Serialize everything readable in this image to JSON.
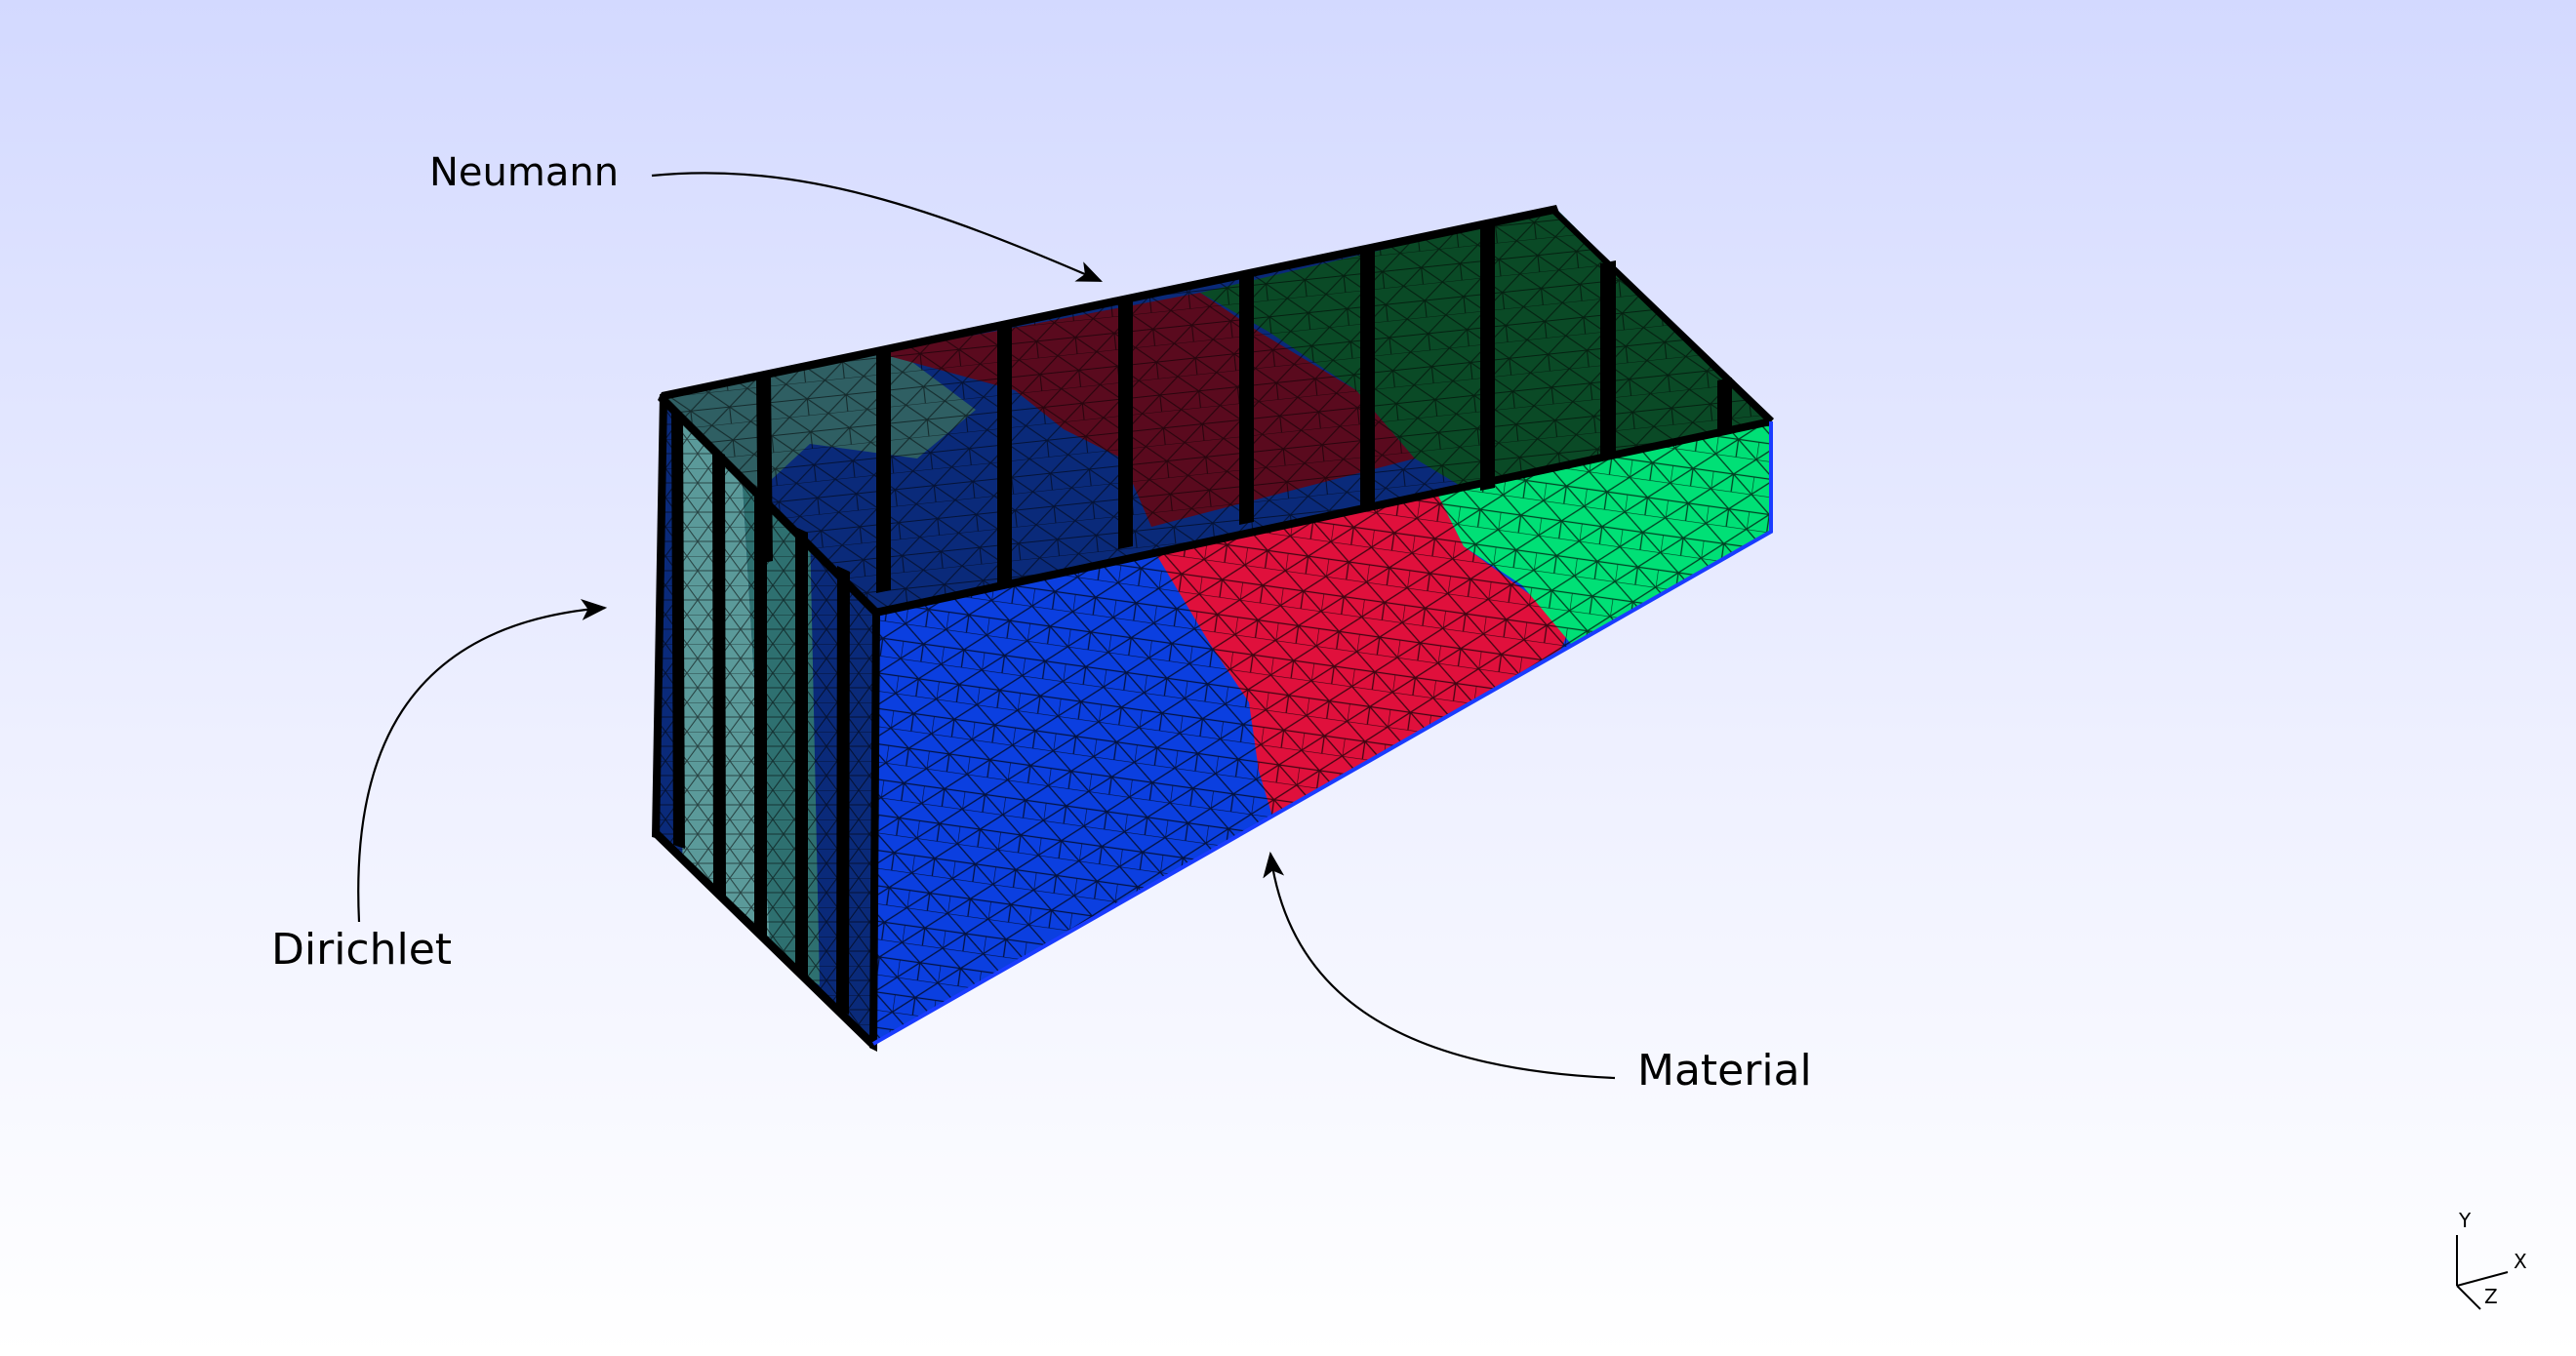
{
  "annotations": {
    "neumann": "Neumann",
    "dirichlet": "Dirichlet",
    "material": "Material"
  },
  "axes_triad": {
    "y": "Y",
    "x": "X",
    "z": "Z"
  },
  "colors": {
    "background_top": "#d3d9ff",
    "background_bottom": "#ffffff",
    "material_blue": "#0b3fe0",
    "material_red": "#e0103c",
    "material_green": "#00e076",
    "interior_teal": "#5b9a9a",
    "interior_dark_blue": "#0a2a7a",
    "interior_dark_red": "#5a0a1e",
    "interior_dark_green": "#0a4a26",
    "edge": "#000000"
  }
}
